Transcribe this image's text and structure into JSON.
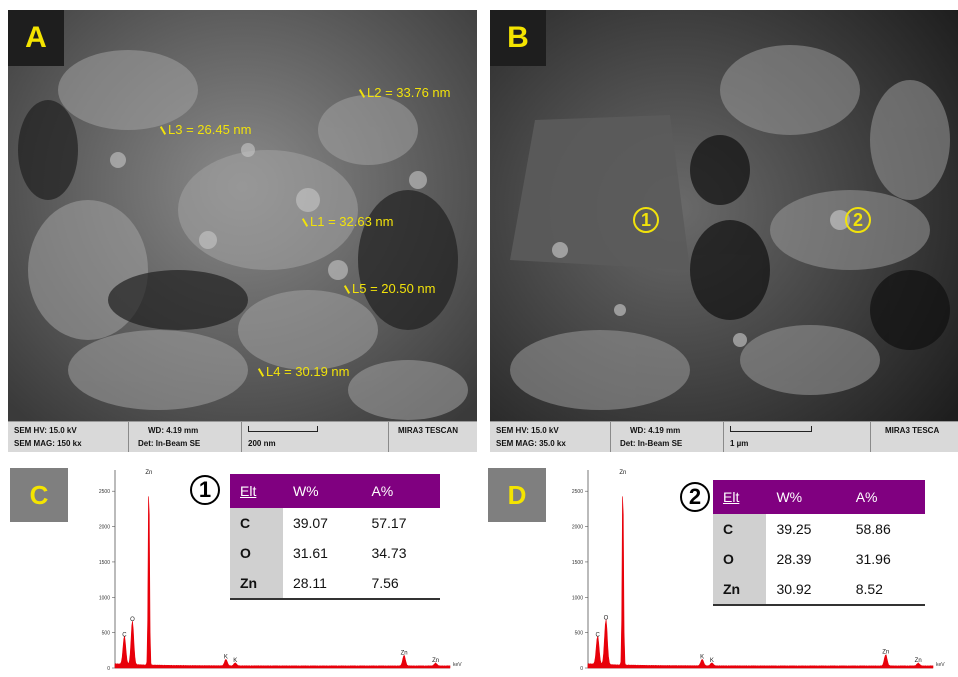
{
  "panels": {
    "A": {
      "label": "A"
    },
    "B": {
      "label": "B"
    },
    "C": {
      "label": "C"
    },
    "D": {
      "label": "D"
    }
  },
  "measurements": [
    {
      "id": "L2",
      "text": "L2 = 33.76 nm"
    },
    {
      "id": "L3",
      "text": "L3 = 26.45 nm"
    },
    {
      "id": "L1",
      "text": "L1 = 32.63 nm"
    },
    {
      "id": "L5",
      "text": "L5 = 20.50 nm"
    },
    {
      "id": "L4",
      "text": "L4 = 30.19 nm"
    }
  ],
  "spots": {
    "one": "1",
    "two": "2"
  },
  "sem_info": {
    "A": {
      "hv": "SEM HV: 15.0 kV",
      "wd": "WD: 4.19 mm",
      "mag": "SEM MAG: 150 kx",
      "det": "Det: In-Beam SE",
      "scale": "200 nm",
      "brand": "MIRA3 TESCAN"
    },
    "B": {
      "hv": "SEM HV: 15.0 kV",
      "wd": "WD: 4.19 mm",
      "mag": "SEM MAG: 35.0 kx",
      "det": "Det: In-Beam SE",
      "scale": "1 µm",
      "brand": "MIRA3 TESCA"
    }
  },
  "tables": {
    "headers": [
      "Elt",
      "W%",
      "A%"
    ],
    "C": {
      "marker": "1",
      "rows": [
        {
          "el": "C",
          "w": "39.07",
          "a": "57.17"
        },
        {
          "el": "O",
          "w": "31.61",
          "a": "34.73"
        },
        {
          "el": "Zn",
          "w": "28.11",
          "a": "7.56"
        }
      ]
    },
    "D": {
      "marker": "2",
      "rows": [
        {
          "el": "C",
          "w": "39.25",
          "a": "58.86"
        },
        {
          "el": "O",
          "w": "28.39",
          "a": "31.96"
        },
        {
          "el": "Zn",
          "w": "30.92",
          "a": "8.52"
        }
      ]
    }
  },
  "chart_data": [
    {
      "type": "line",
      "panel": "C",
      "y_ticks": [
        "2500",
        "2000",
        "1500",
        "1000",
        "500",
        "0"
      ],
      "ylim": [
        0,
        2800
      ],
      "xlim": [
        0,
        10
      ],
      "xlabel": "keV",
      "peaks": [
        {
          "label": "C",
          "x": 0.28,
          "y": 400
        },
        {
          "label": "O",
          "x": 0.52,
          "y": 620
        },
        {
          "label": "Zn",
          "x": 1.01,
          "y": 2700
        },
        {
          "label": "K",
          "x": 3.31,
          "y": 90
        },
        {
          "label": "K",
          "x": 3.59,
          "y": 40
        },
        {
          "label": "Zn",
          "x": 8.63,
          "y": 150
        },
        {
          "label": "Zn",
          "x": 9.57,
          "y": 40
        }
      ]
    },
    {
      "type": "line",
      "panel": "D",
      "y_ticks": [
        "2500",
        "2000",
        "1500",
        "1000",
        "500",
        "0"
      ],
      "ylim": [
        0,
        2800
      ],
      "xlim": [
        0,
        10
      ],
      "xlabel": "keV",
      "peaks": [
        {
          "label": "C",
          "x": 0.28,
          "y": 400
        },
        {
          "label": "O",
          "x": 0.52,
          "y": 640
        },
        {
          "label": "Zn",
          "x": 1.01,
          "y": 2700
        },
        {
          "label": "K",
          "x": 3.31,
          "y": 90
        },
        {
          "label": "K",
          "x": 3.59,
          "y": 40
        },
        {
          "label": "Zn",
          "x": 8.63,
          "y": 160
        },
        {
          "label": "Zn",
          "x": 9.57,
          "y": 40
        }
      ]
    }
  ],
  "colors": {
    "label_yellow": "#f4e400",
    "measure_yellow": "#f1e20b",
    "table_header": "#800080",
    "spectrum_red": "#e8000a"
  }
}
